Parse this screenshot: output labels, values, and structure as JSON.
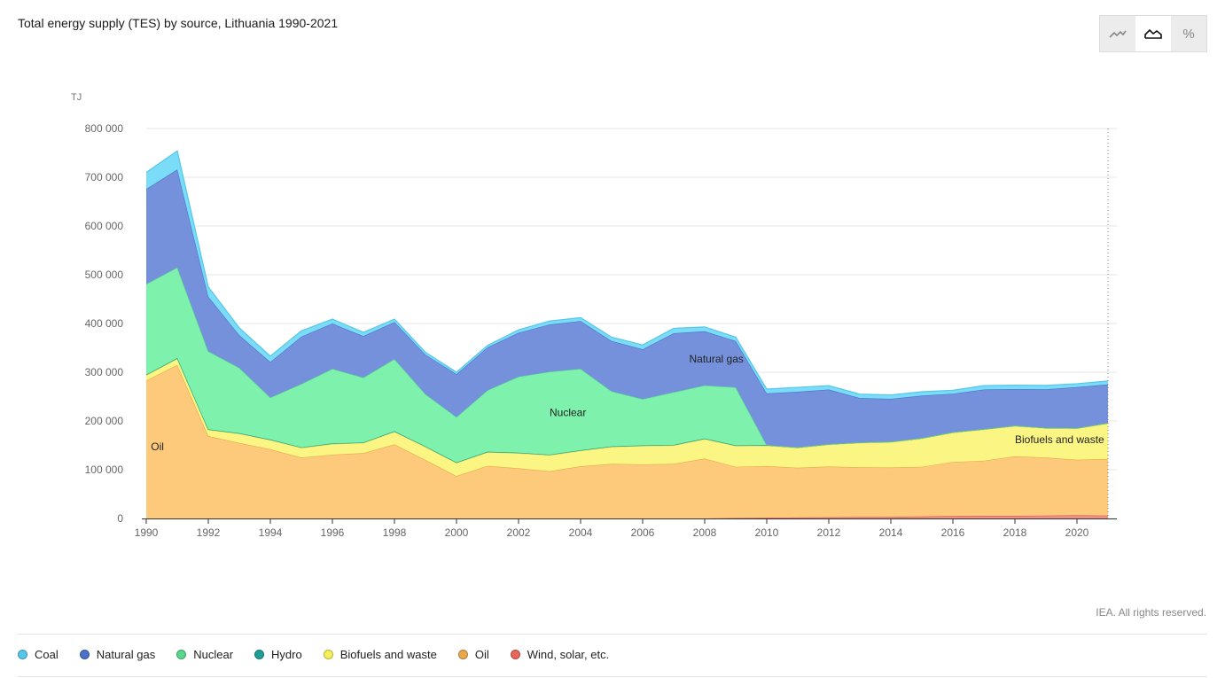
{
  "title": "Total energy supply (TES) by source, Lithuania 1990-2021",
  "toggles": [
    {
      "name": "line-chart-toggle",
      "icon": "line-chart-icon",
      "active": false
    },
    {
      "name": "area-chart-toggle",
      "icon": "area-chart-icon",
      "active": true
    },
    {
      "name": "percent-toggle",
      "icon": "percent-icon",
      "glyph": "%",
      "active": false
    }
  ],
  "unit": "TJ",
  "credit": "IEA. All rights reserved.",
  "legend": [
    {
      "label": "Coal",
      "color": "#56c7ea"
    },
    {
      "label": "Natural gas",
      "color": "#4a72c9"
    },
    {
      "label": "Nuclear",
      "color": "#58d68d"
    },
    {
      "label": "Hydro",
      "color": "#1e9e96"
    },
    {
      "label": "Biofuels and waste",
      "color": "#f5ef5a"
    },
    {
      "label": "Oil",
      "color": "#e9a84b"
    },
    {
      "label": "Wind, solar, etc.",
      "color": "#e8665a"
    }
  ],
  "chart_data": {
    "type": "area",
    "stacked": true,
    "x": [
      1990,
      1991,
      1992,
      1993,
      1994,
      1995,
      1996,
      1997,
      1998,
      1999,
      2000,
      2001,
      2002,
      2003,
      2004,
      2005,
      2006,
      2007,
      2008,
      2009,
      2010,
      2011,
      2012,
      2013,
      2014,
      2015,
      2016,
      2017,
      2018,
      2019,
      2020,
      2021
    ],
    "ylim": [
      0,
      800000
    ],
    "yticks": [
      0,
      100000,
      200000,
      300000,
      400000,
      500000,
      600000,
      700000,
      800000
    ],
    "ytick_labels": [
      "0",
      "100 000",
      "200 000",
      "300 000",
      "400 000",
      "500 000",
      "600 000",
      "700 000",
      "800 000"
    ],
    "xticks": [
      1990,
      1992,
      1994,
      1996,
      1998,
      2000,
      2002,
      2004,
      2006,
      2008,
      2010,
      2012,
      2014,
      2016,
      2018,
      2020
    ],
    "ylabel": "TJ",
    "series": [
      {
        "name": "Wind, solar, etc.",
        "color": "#f08f84",
        "line": "#d9544a",
        "values": [
          0,
          0,
          0,
          0,
          0,
          0,
          0,
          0,
          0,
          0,
          0,
          0,
          0,
          0,
          0,
          0,
          0,
          0,
          0,
          1000,
          1500,
          2000,
          2500,
          3000,
          3500,
          4000,
          5000,
          5500,
          5500,
          6000,
          6500,
          6000
        ]
      },
      {
        "name": "Oil",
        "color": "#fdca7c",
        "line": "#e9a84b",
        "values": [
          283000,
          315000,
          169000,
          155000,
          142000,
          125000,
          131000,
          134000,
          152000,
          120000,
          87000,
          108000,
          103000,
          97000,
          107000,
          112000,
          111000,
          112000,
          123000,
          105000,
          106000,
          102000,
          104000,
          102000,
          101000,
          102000,
          111000,
          113000,
          122000,
          119000,
          114000,
          116000
        ]
      },
      {
        "name": "Biofuels and waste",
        "color": "#fbf584",
        "line": "#e2dc3c",
        "values": [
          11000,
          13000,
          13000,
          19000,
          19000,
          20000,
          22000,
          21000,
          26000,
          27000,
          27000,
          28000,
          31000,
          33000,
          32000,
          35000,
          38000,
          38000,
          40000,
          43000,
          42000,
          41000,
          45000,
          50000,
          52000,
          58000,
          60000,
          64000,
          62000,
          60000,
          64000,
          73000
        ]
      },
      {
        "name": "Hydro",
        "color": "#3aa9a2",
        "line": "#1e9e96",
        "values": [
          1000,
          1000,
          1000,
          1000,
          1000,
          1000,
          1000,
          1000,
          1000,
          1000,
          1000,
          1000,
          1000,
          1000,
          1000,
          1000,
          1000,
          1000,
          1000,
          1000,
          1000,
          1000,
          1000,
          1000,
          1000,
          1000,
          1000,
          1000,
          1000,
          1000,
          1000,
          1000
        ]
      },
      {
        "name": "Nuclear",
        "color": "#7ef1ad",
        "line": "#58d68d",
        "values": [
          186000,
          186000,
          160000,
          134000,
          86000,
          130000,
          153000,
          133000,
          148000,
          107000,
          93000,
          126000,
          156000,
          170000,
          167000,
          113000,
          95000,
          108000,
          109000,
          119000,
          0,
          0,
          0,
          0,
          0,
          0,
          0,
          0,
          0,
          0,
          0,
          0
        ]
      },
      {
        "name": "Natural gas",
        "color": "#7591dc",
        "line": "#4a72c9",
        "values": [
          195000,
          201000,
          112000,
          67000,
          73000,
          97000,
          93000,
          85000,
          76000,
          81000,
          88000,
          88000,
          90000,
          97000,
          98000,
          103000,
          102000,
          121000,
          111000,
          95000,
          106000,
          114000,
          112000,
          91000,
          88000,
          87000,
          79000,
          81000,
          75000,
          79000,
          84000,
          79000
        ]
      },
      {
        "name": "Coal",
        "color": "#7bdcf7",
        "line": "#56c7ea",
        "values": [
          34000,
          38000,
          20000,
          15000,
          12000,
          12000,
          9000,
          8000,
          6000,
          5000,
          4000,
          4000,
          6000,
          7000,
          7000,
          8000,
          9000,
          10000,
          9000,
          8000,
          9000,
          9000,
          8000,
          8000,
          8000,
          8000,
          7000,
          8000,
          8000,
          8000,
          7000,
          7000
        ]
      }
    ],
    "area_labels": [
      {
        "text": "Oil",
        "x": 1990.15,
        "y": 140000
      },
      {
        "text": "Nuclear",
        "x": 2003.0,
        "y": 210000
      },
      {
        "text": "Natural gas",
        "x": 2007.5,
        "y": 320000
      },
      {
        "text": "Biofuels and waste",
        "x": 2018.0,
        "y": 155000
      }
    ]
  }
}
